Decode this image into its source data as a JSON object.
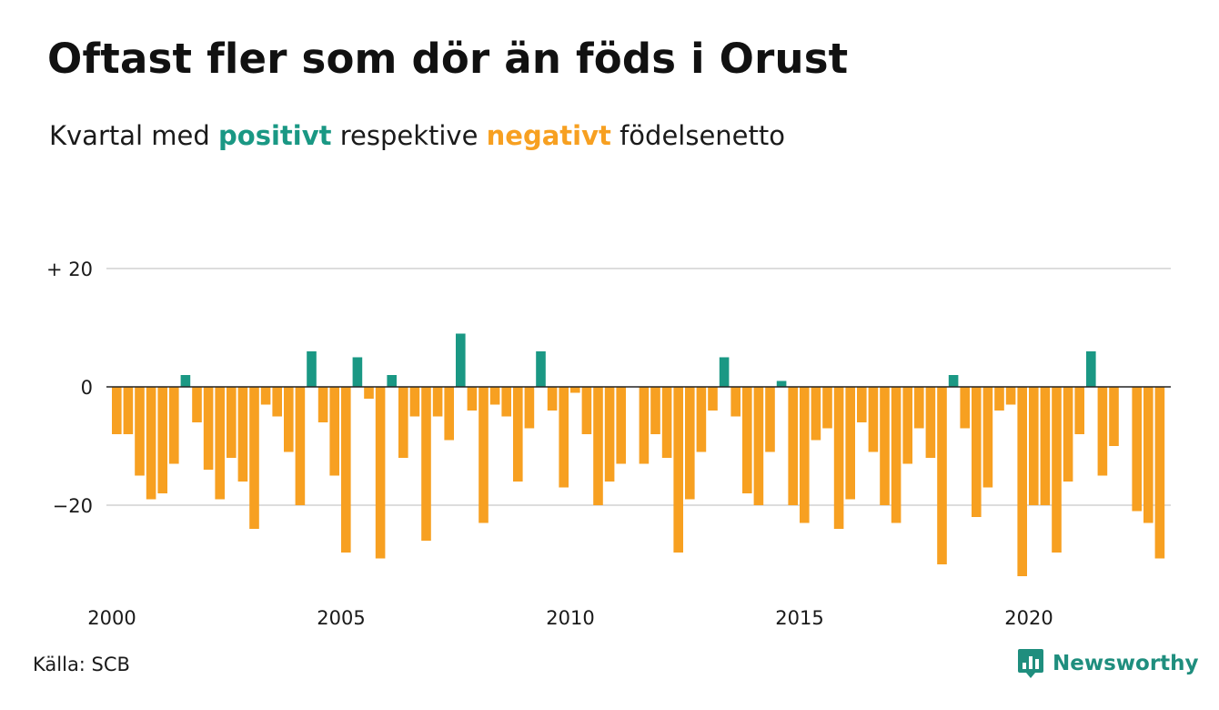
{
  "title": "Oftast fler som dör än föds i Orust",
  "subtitle": {
    "before": "Kvartal med",
    "positive_word": "positivt",
    "middle": "respektive",
    "negative_word": "negativt",
    "after": "födelsenetto"
  },
  "colors": {
    "positive": "#1a9884",
    "negative": "#f7a021",
    "gridline": "#dddddd",
    "zero_line": "#222222",
    "brand": "#1f8e7e"
  },
  "source": "Källa: SCB",
  "brand": {
    "name": "Newsworthy",
    "icon": "newsworthy-chart-bubble-icon"
  },
  "chart_data": {
    "type": "bar",
    "title": "Oftast fler som dör än föds i Orust",
    "xlabel": "",
    "ylabel": "",
    "ylim": [
      -35,
      20
    ],
    "x_start": "2000Q1",
    "period": "quarter",
    "yticks": [
      {
        "value": 20,
        "label": "+ 20"
      },
      {
        "value": 0,
        "label": "0"
      },
      {
        "value": -20,
        "label": "−20"
      }
    ],
    "xticks": [
      {
        "year": 2000,
        "label": "2000"
      },
      {
        "year": 2005,
        "label": "2005"
      },
      {
        "year": 2010,
        "label": "2010"
      },
      {
        "year": 2015,
        "label": "2015"
      },
      {
        "year": 2020,
        "label": "2020"
      }
    ],
    "grid": true,
    "values": [
      -8,
      -8,
      -15,
      -19,
      -18,
      -13,
      2,
      -6,
      -14,
      -19,
      -12,
      -16,
      -24,
      -3,
      -5,
      -11,
      -20,
      6,
      -6,
      -15,
      -28,
      5,
      -2,
      -29,
      2,
      -12,
      -5,
      -26,
      -5,
      -9,
      9,
      -4,
      -23,
      -3,
      -5,
      -16,
      -7,
      6,
      -4,
      -17,
      -1,
      -8,
      -20,
      -16,
      -13,
      0,
      -13,
      -8,
      -12,
      -28,
      -19,
      -11,
      -4,
      5,
      -5,
      -18,
      -20,
      -11,
      1,
      -20,
      -23,
      -9,
      -7,
      -24,
      -19,
      -6,
      -11,
      -20,
      -23,
      -13,
      -7,
      -12,
      -30,
      2,
      -7,
      -22,
      -17,
      -4,
      -3,
      -32,
      -20,
      -20,
      -28,
      -16,
      -8,
      6,
      -15,
      -10,
      0,
      -21,
      -23,
      -29
    ]
  }
}
